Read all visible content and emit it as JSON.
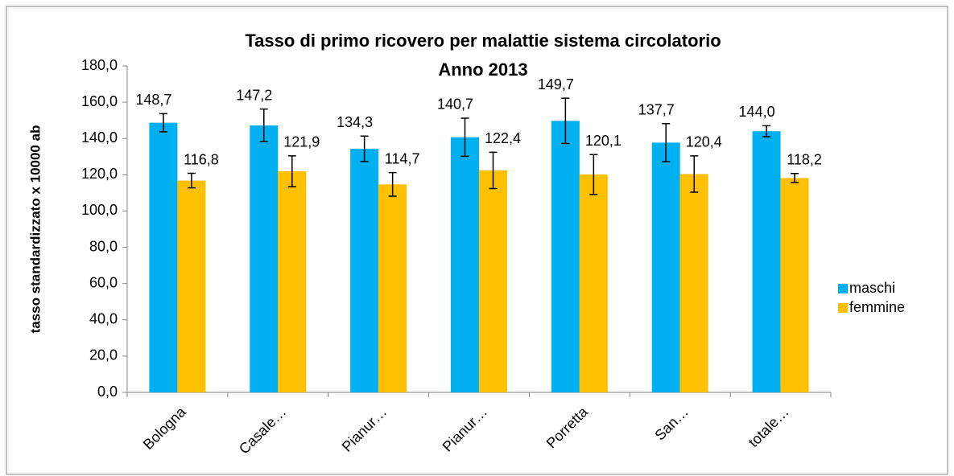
{
  "chart_data": {
    "type": "bar",
    "title": "Tasso di primo ricovero per malattie sistema circolatorio",
    "subtitle": "Anno 2013",
    "y_label": "tasso standardizzato x 10000 ab",
    "categories": [
      "Bologna",
      "Casale…",
      "Pianur…",
      "Pianur…",
      "Porretta",
      "San…",
      "totale…"
    ],
    "series": [
      {
        "name": "maschi",
        "color": "#00b0f0",
        "values": [
          148.7,
          147.2,
          134.3,
          140.7,
          149.7,
          137.7,
          144.0
        ],
        "value_labels": [
          "148,7",
          "147,2",
          "134,3",
          "140,7",
          "149,7",
          "137,7",
          "144,0"
        ],
        "errors": [
          5,
          9,
          7,
          10.5,
          12.5,
          10.5,
          3
        ]
      },
      {
        "name": "femmine",
        "color": "#ffc000",
        "values": [
          116.8,
          121.9,
          114.7,
          122.4,
          120.1,
          120.4,
          118.2
        ],
        "value_labels": [
          "116,8",
          "121,9",
          "114,7",
          "122,4",
          "120,1",
          "120,4",
          "118,2"
        ],
        "errors": [
          4,
          8.5,
          6.5,
          10,
          11,
          10,
          2.5
        ]
      }
    ],
    "ylim": [
      0,
      180
    ],
    "yticks": [
      {
        "value": 0,
        "label": "0,0"
      },
      {
        "value": 20,
        "label": "20,0"
      },
      {
        "value": 40,
        "label": "40,0"
      },
      {
        "value": 60,
        "label": "60,0"
      },
      {
        "value": 80,
        "label": "80,0"
      },
      {
        "value": 100,
        "label": "100,0"
      },
      {
        "value": 120,
        "label": "120,0"
      },
      {
        "value": 140,
        "label": "140,0"
      },
      {
        "value": 160,
        "label": "160,0"
      },
      {
        "value": 180,
        "label": "180,0"
      }
    ],
    "grid": false,
    "legend": "right"
  }
}
